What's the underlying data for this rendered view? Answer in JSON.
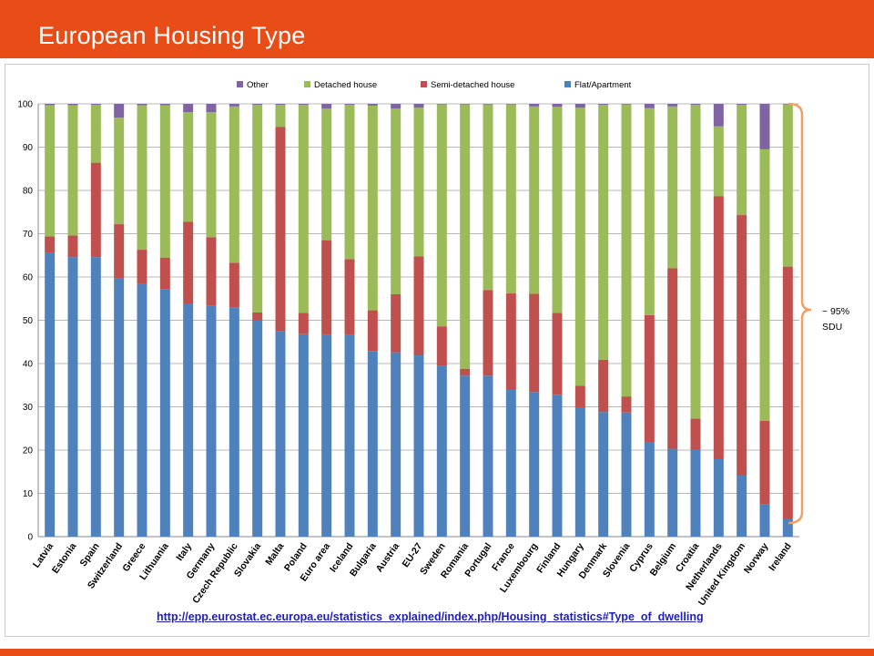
{
  "page": {
    "title": "European Housing Type",
    "source_url": "http://epp.eurostat.ec.europa.eu/statistics_explained/index.php/Housing_statistics#Type_of_dwelling",
    "annotation": [
      "~ 95%",
      "SDU"
    ],
    "colors": {
      "banner": "#e84d18",
      "bracket": "#f0a060"
    }
  },
  "chart_data": {
    "type": "bar",
    "stacked": true,
    "categories": [
      "Latvia",
      "Estonia",
      "Spain",
      "Switzerland",
      "Greece",
      "Lithuania",
      "Italy",
      "Germany",
      "Czech Republic",
      "Slovakia",
      "Malta",
      "Poland",
      "Euro area",
      "Iceland",
      "Bulgaria",
      "Austria",
      "EU-27",
      "Sweden",
      "Romania",
      "Portugal",
      "France",
      "Luxembourg",
      "Finland",
      "Hungary",
      "Denmark",
      "Slovenia",
      "Cyprus",
      "Belgium",
      "Croatia",
      "Netherlands",
      "United Kingdom",
      "Norway",
      "Ireland"
    ],
    "ylim": [
      0,
      100
    ],
    "yticks": [
      0,
      10,
      20,
      30,
      40,
      50,
      60,
      70,
      80,
      90,
      100
    ],
    "grid": true,
    "legend_position": "top",
    "legend_order": [
      "Other",
      "Detached house",
      "Semi-detached house",
      "Flat/Apartment"
    ],
    "series": [
      {
        "name": "Flat/Apartment",
        "color": "#4f81bd",
        "values": [
          65.5,
          64.6,
          64.6,
          59.6,
          58.4,
          57.2,
          53.7,
          53.4,
          52.9,
          49.9,
          47.4,
          46.8,
          46.6,
          46.6,
          42.9,
          42.6,
          41.9,
          39.4,
          37.2,
          37.2,
          34.0,
          33.4,
          32.8,
          29.8,
          28.8,
          28.7,
          21.9,
          20.3,
          20.1,
          17.9,
          14.1,
          7.5,
          4.1
        ]
      },
      {
        "name": "Semi-detached house",
        "color": "#c0504d",
        "values": [
          3.9,
          5.0,
          21.8,
          12.6,
          7.9,
          7.3,
          19.1,
          15.8,
          10.4,
          1.9,
          47.3,
          4.9,
          21.9,
          17.5,
          9.4,
          13.4,
          22.9,
          9.2,
          1.6,
          19.8,
          22.2,
          22.7,
          18.9,
          5.1,
          12.1,
          3.7,
          29.3,
          41.7,
          7.2,
          60.8,
          60.2,
          19.3,
          58.3
        ]
      },
      {
        "name": "Detached house",
        "color": "#9bbb59",
        "values": [
          30.3,
          30.1,
          13.4,
          24.6,
          33.4,
          35.2,
          25.3,
          28.9,
          36.1,
          48.0,
          5.1,
          48.1,
          30.4,
          35.7,
          47.3,
          42.9,
          34.3,
          51.3,
          61.1,
          42.9,
          43.7,
          43.3,
          47.6,
          64.2,
          58.9,
          67.5,
          47.8,
          37.4,
          72.5,
          16.1,
          25.5,
          62.7,
          37.5
        ]
      },
      {
        "name": "Other",
        "color": "#8064a2",
        "values": [
          0.3,
          0.3,
          0.2,
          3.2,
          0.3,
          0.3,
          1.9,
          1.9,
          0.6,
          0.2,
          0.2,
          0.2,
          1.1,
          0.2,
          0.4,
          1.1,
          0.9,
          0.1,
          0.1,
          0.1,
          0.1,
          0.6,
          0.7,
          0.9,
          0.2,
          0.1,
          1.0,
          0.6,
          0.2,
          5.2,
          0.2,
          10.5,
          0.1
        ]
      }
    ]
  }
}
